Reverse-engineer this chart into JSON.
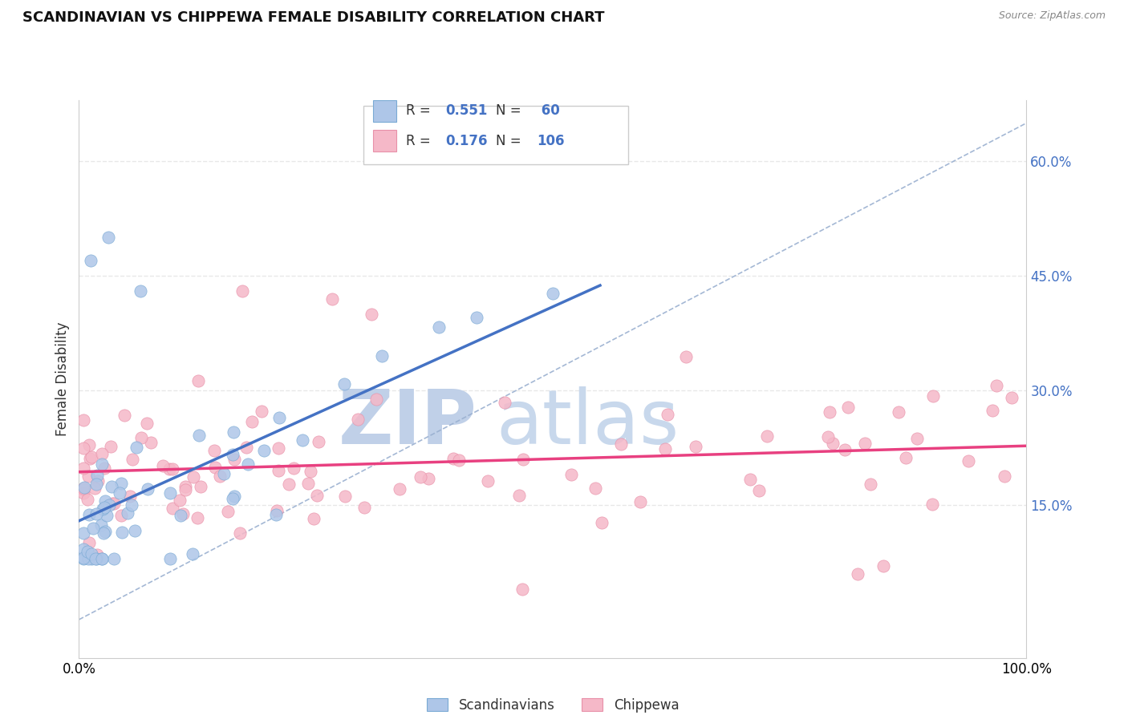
{
  "title": "SCANDINAVIAN VS CHIPPEWA FEMALE DISABILITY CORRELATION CHART",
  "source_text": "Source: ZipAtlas.com",
  "ylabel": "Female Disability",
  "xlim": [
    0.0,
    1.0
  ],
  "ylim": [
    -0.05,
    0.68
  ],
  "x_tick_labels": [
    "0.0%",
    "100.0%"
  ],
  "y_tick_labels_right": [
    "15.0%",
    "30.0%",
    "45.0%",
    "60.0%"
  ],
  "y_ticks_right": [
    0.15,
    0.3,
    0.45,
    0.6
  ],
  "color_scandinavian_fill": "#aec6e8",
  "color_scandinavian_edge": "#7aaad4",
  "color_chippewa_fill": "#f5b8c8",
  "color_chippewa_edge": "#e890a8",
  "color_line_scandinavian": "#4472c4",
  "color_line_chippewa": "#e84080",
  "color_ref_line": "#9ab0d0",
  "color_grid": "#e8e8e8",
  "color_ytick": "#4472c4",
  "background_color": "#ffffff",
  "watermark_zip_color": "#c0d0e8",
  "watermark_atlas_color": "#c8d8ec",
  "legend_box_color": "#f0f4f8",
  "legend_edge_color": "#cccccc"
}
